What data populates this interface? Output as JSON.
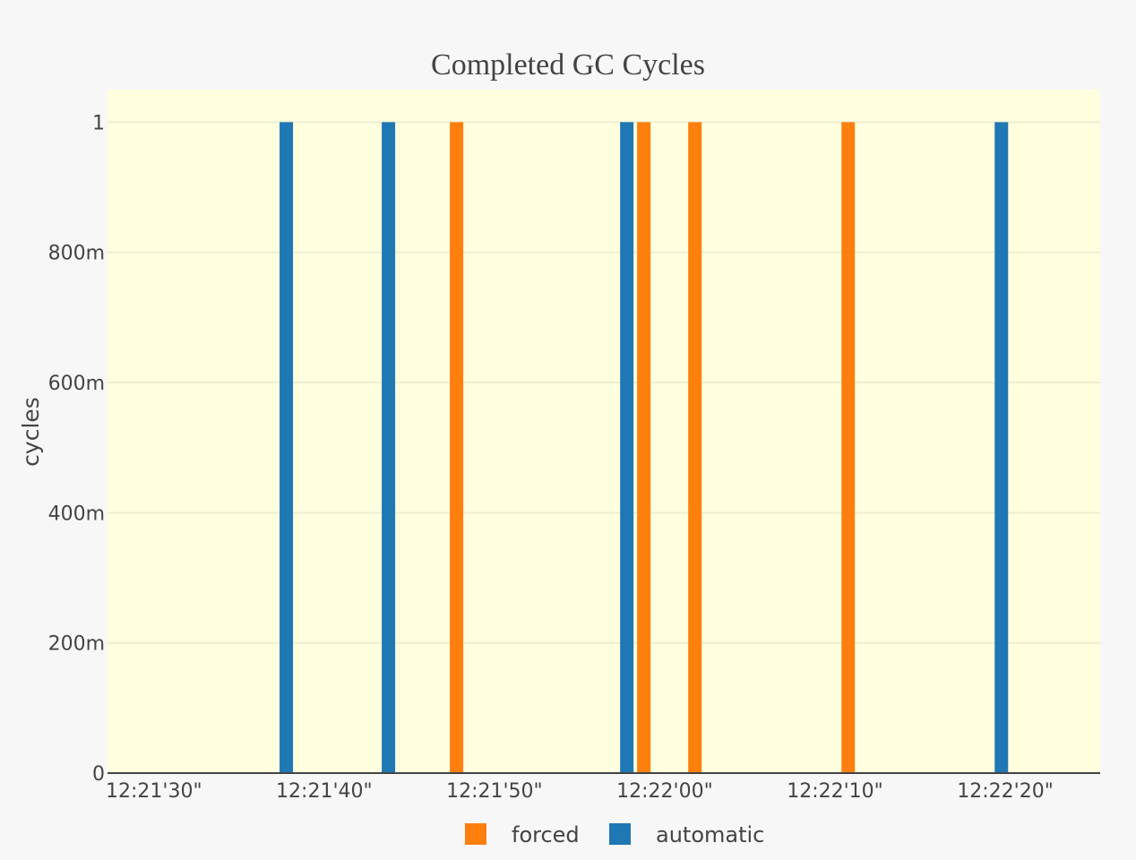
{
  "chart_data": {
    "type": "bar",
    "title": "Completed GC Cycles",
    "xlabel": "",
    "ylabel": "cycles",
    "x_tick_labels": [
      "12:21'30\"",
      "12:21'40\"",
      "12:21'50\"",
      "12:22'00\"",
      "12:22'10\"",
      "12:22'20\""
    ],
    "x_tick_seconds": [
      0,
      10,
      20,
      30,
      40,
      50
    ],
    "x_range_seconds": [
      0,
      58.3
    ],
    "y_tick_labels": [
      "0",
      "200m",
      "400m",
      "600m",
      "800m",
      "1"
    ],
    "y_tick_values": [
      0,
      0.2,
      0.4,
      0.6,
      0.8,
      1
    ],
    "ylim": [
      0,
      1.05
    ],
    "grid": true,
    "legend_position": "bottom-center",
    "background": "#ffffe0",
    "series": [
      {
        "name": "forced",
        "color": "#ff7f0e",
        "points": [
          {
            "x": "12:21'50\"",
            "t": 20.5,
            "y": 1
          },
          {
            "x": "12:22'01\"",
            "t": 31.5,
            "y": 1
          },
          {
            "x": "12:22'04\"",
            "t": 34.5,
            "y": 1
          },
          {
            "x": "12:22'13\"",
            "t": 43.5,
            "y": 1
          }
        ]
      },
      {
        "name": "automatic",
        "color": "#1f77b4",
        "points": [
          {
            "x": "12:21'40\"",
            "t": 10.5,
            "y": 1
          },
          {
            "x": "12:21'46\"",
            "t": 16.5,
            "y": 1
          },
          {
            "x": "12:22'00\"",
            "t": 30.5,
            "y": 1
          },
          {
            "x": "12:22'22\"",
            "t": 52.5,
            "y": 1
          }
        ]
      }
    ]
  }
}
